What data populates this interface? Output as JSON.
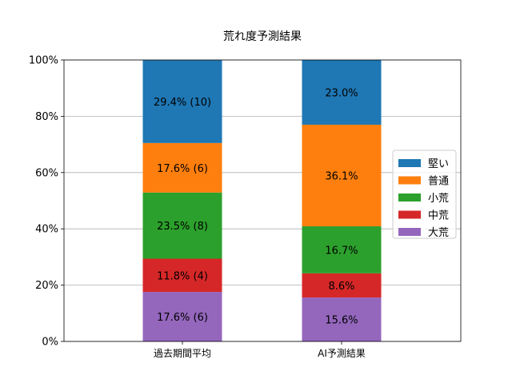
{
  "chart_data": {
    "type": "bar",
    "stacked": true,
    "title": "荒れ度予測結果",
    "xlabel": "",
    "ylabel": "",
    "ylim": [
      0,
      100
    ],
    "yticks": [
      0,
      20,
      40,
      60,
      80,
      100
    ],
    "ytick_labels": [
      "0%",
      "20%",
      "40%",
      "60%",
      "80%",
      "100%"
    ],
    "grid": "horizontal",
    "legend_position": "center-right",
    "categories": [
      "過去期間平均",
      "AI予測結果"
    ],
    "series": [
      {
        "name": "大荒",
        "color": "#9467bd",
        "values": [
          17.6,
          15.6
        ],
        "labels": [
          "17.6% (6)",
          "15.6%"
        ]
      },
      {
        "name": "中荒",
        "color": "#d62728",
        "values": [
          11.8,
          8.6
        ],
        "labels": [
          "11.8% (4)",
          "8.6%"
        ]
      },
      {
        "name": "小荒",
        "color": "#2ca02c",
        "values": [
          23.5,
          16.7
        ],
        "labels": [
          "23.5% (8)",
          "16.7%"
        ]
      },
      {
        "name": "普通",
        "color": "#ff7f0e",
        "values": [
          17.6,
          36.1
        ],
        "labels": [
          "17.6% (6)",
          "36.1%"
        ]
      },
      {
        "name": "堅い",
        "color": "#1f77b4",
        "values": [
          29.4,
          23.0
        ],
        "labels": [
          "29.4% (10)",
          "23.0%"
        ]
      }
    ],
    "legend_order": [
      "堅い",
      "普通",
      "小荒",
      "中荒",
      "大荒"
    ]
  }
}
